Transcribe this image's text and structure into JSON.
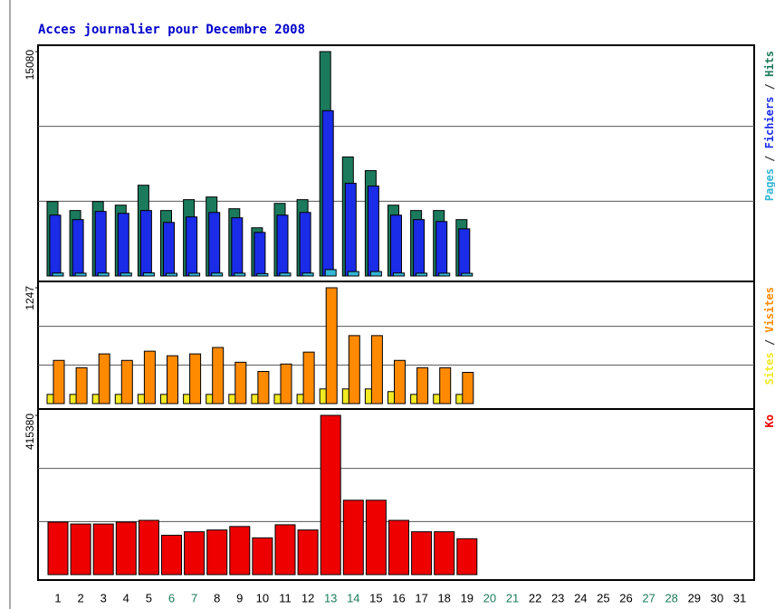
{
  "chart_data": [
    {
      "type": "bar",
      "title": "Acces journalier pour Decembre 2008",
      "ylim": [
        0,
        15080
      ],
      "yticks": [
        15080
      ],
      "series": [
        {
          "name": "Pages",
          "color": "#33b5d5",
          "values": [
            200,
            190,
            200,
            200,
            210,
            180,
            190,
            200,
            190,
            160,
            200,
            200,
            430,
            300,
            300,
            200,
            190,
            190,
            180,
            null,
            null,
            null,
            null,
            null,
            null,
            null,
            null,
            null,
            null,
            null,
            null
          ]
        },
        {
          "name": "Fichiers",
          "color": "#1a2ce8",
          "values": [
            4090,
            3790,
            4340,
            4210,
            4400,
            3600,
            3970,
            4270,
            3910,
            2930,
            4090,
            4270,
            11110,
            6230,
            6040,
            4090,
            3790,
            3660,
            3170,
            null,
            null,
            null,
            null,
            null,
            null,
            null,
            null,
            null,
            null,
            null,
            null
          ]
        },
        {
          "name": "Hits",
          "color": "#1b7a5c",
          "values": [
            5000,
            4400,
            5000,
            4760,
            6100,
            4400,
            5130,
            5310,
            4520,
            3240,
            4880,
            5130,
            15080,
            8000,
            7080,
            4760,
            4400,
            4400,
            3790,
            null,
            null,
            null,
            null,
            null,
            null,
            null,
            null,
            null,
            null,
            null,
            null
          ]
        }
      ]
    },
    {
      "type": "bar",
      "ylim": [
        0,
        1247
      ],
      "yticks": [
        1247
      ],
      "series": [
        {
          "name": "Sites",
          "color": "#f2ea22",
          "values": [
            99,
            99,
            99,
            99,
            99,
            99,
            99,
            99,
            99,
            99,
            99,
            99,
            158,
            158,
            158,
            129,
            99,
            99,
            99,
            null,
            null,
            null,
            null,
            null,
            null,
            null,
            null,
            null,
            null,
            null,
            null
          ]
        },
        {
          "name": "Visites",
          "color": "#ff8a00",
          "values": [
            465,
            386,
            535,
            465,
            564,
            515,
            535,
            604,
            445,
            346,
            426,
            554,
            1247,
            732,
            732,
            465,
            386,
            386,
            336,
            null,
            null,
            null,
            null,
            null,
            null,
            null,
            null,
            null,
            null,
            null,
            null
          ]
        }
      ]
    },
    {
      "type": "bar",
      "ylim": [
        0,
        415380
      ],
      "yticks": [
        415380
      ],
      "categories": [
        "1",
        "2",
        "3",
        "4",
        "5",
        "6",
        "7",
        "8",
        "9",
        "10",
        "11",
        "12",
        "13",
        "14",
        "15",
        "16",
        "17",
        "18",
        "19",
        "20",
        "21",
        "22",
        "23",
        "24",
        "25",
        "26",
        "27",
        "28",
        "29",
        "30",
        "31"
      ],
      "category_colors": [
        "#000",
        "#000",
        "#000",
        "#000",
        "#000",
        "#1b7a5c",
        "#1b7a5c",
        "#000",
        "#000",
        "#000",
        "#000",
        "#000",
        "#1b7a5c",
        "#1b7a5c",
        "#000",
        "#000",
        "#000",
        "#000",
        "#000",
        "#1b7a5c",
        "#1b7a5c",
        "#000",
        "#000",
        "#000",
        "#000",
        "#000",
        "#1b7a5c",
        "#1b7a5c",
        "#000",
        "#000",
        "#000"
      ],
      "series": [
        {
          "name": "Ko",
          "color": "#ee0000",
          "values": [
            137000,
            132000,
            132000,
            137000,
            141500,
            102700,
            111800,
            116400,
            125500,
            95900,
            130000,
            116400,
            415380,
            194000,
            194000,
            141500,
            111800,
            111800,
            93600,
            null,
            null,
            null,
            null,
            null,
            null,
            null,
            null,
            null,
            null,
            null,
            null
          ]
        }
      ]
    }
  ]
}
